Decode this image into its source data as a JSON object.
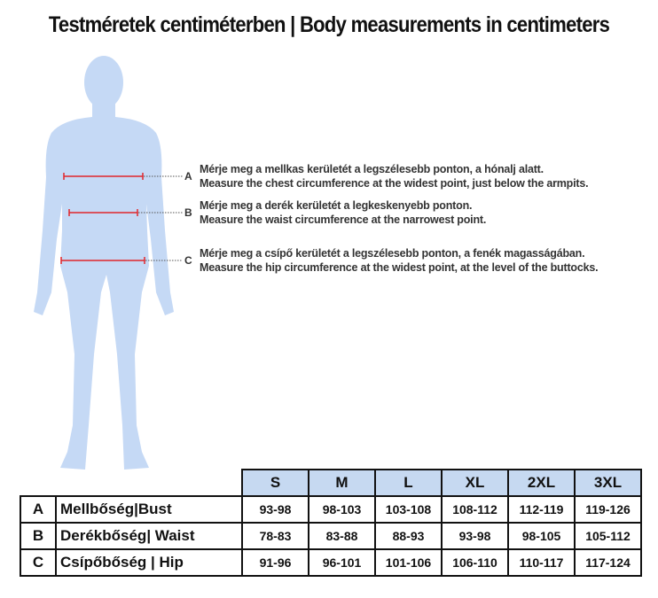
{
  "title": "Testméretek centiméterben | Body measurements in centimeters",
  "colors": {
    "silhouette": "#c5d9f5",
    "measure_line": "#e0262b",
    "header_bg": "#c6d9f1"
  },
  "measurements": [
    {
      "letter": "A",
      "hu": "Mérje meg a mellkas kerületét a legszélesebb ponton, a hónalj alatt.",
      "en": "Measure the chest circumference at the widest point, just below the armpits."
    },
    {
      "letter": "B",
      "hu": "Mérje meg a derék kerületét a legkeskenyebb ponton.",
      "en": "Measure the waist circumference at the narrowest point."
    },
    {
      "letter": "C",
      "hu": "Mérje meg a csípő kerületét a legszélesebb ponton, a fenék magasságában.",
      "en": "Measure the hip circumference at the widest point, at the level of the buttocks."
    }
  ],
  "table": {
    "sizes": [
      "S",
      "M",
      "L",
      "XL",
      "2XL",
      "3XL"
    ],
    "rows": [
      {
        "letter": "A",
        "label": "Mellbőség|Bust",
        "values": [
          "93-98",
          "98-103",
          "103-108",
          "108-112",
          "112-119",
          "119-126"
        ]
      },
      {
        "letter": "B",
        "label": "Derékbőség| Waist",
        "values": [
          "78-83",
          "83-88",
          "88-93",
          "93-98",
          "98-105",
          "105-112"
        ]
      },
      {
        "letter": "C",
        "label": "Csípőbőség | Hip",
        "values": [
          "91-96",
          "96-101",
          "101-106",
          "106-110",
          "110-117",
          "117-124"
        ]
      }
    ]
  }
}
